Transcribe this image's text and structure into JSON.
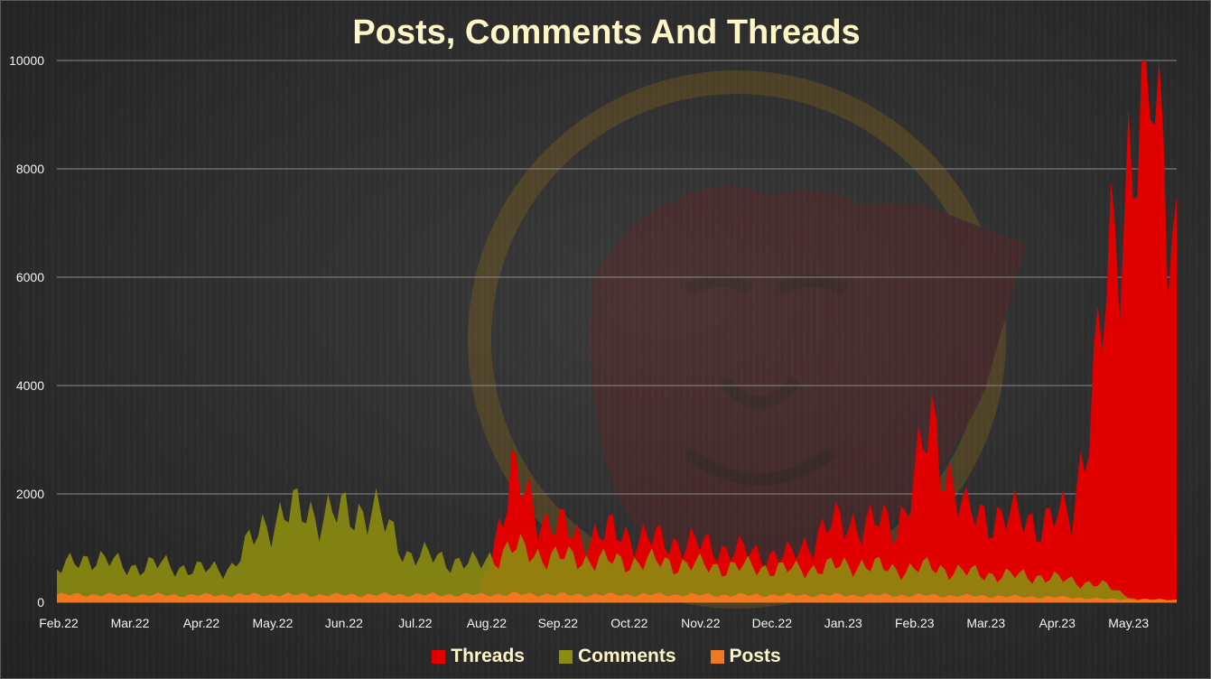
{
  "chart_data": {
    "type": "area",
    "title": "Posts, Comments And Threads",
    "xlabel": "",
    "ylabel": "",
    "ylim": [
      0,
      10000
    ],
    "yticks": [
      "0",
      "2000",
      "4000",
      "6000",
      "8000",
      "10000"
    ],
    "grid": true,
    "legend_position": "bottom",
    "categories": [
      "Feb.22",
      "Mar.22",
      "Apr.22",
      "May.22",
      "Jun.22",
      "Jul.22",
      "Aug.22",
      "Sep.22",
      "Oct.22",
      "Nov.22",
      "Dec.22",
      "Jan.23",
      "Feb.23",
      "Mar.23",
      "Apr.23",
      "May.23"
    ],
    "x": [
      "Feb.22",
      "Feb.22",
      "Mar.22",
      "Mar.22",
      "Apr.22",
      "Apr.22",
      "May.22",
      "May.22",
      "Jun.22",
      "Jun.22",
      "Jul.22",
      "Jul.22",
      "Aug.22",
      "Aug.22",
      "Sep.22",
      "Sep.22",
      "Oct.22",
      "Oct.22",
      "Nov.22",
      "Nov.22",
      "Dec.22",
      "Dec.22",
      "Jan.23",
      "Jan.23",
      "Feb.23",
      "Feb.23",
      "Mar.23",
      "Mar.23",
      "Apr.23",
      "Apr.23",
      "May.23",
      "May.23",
      "Jun.23"
    ],
    "series": [
      {
        "name": "Threads",
        "color": "#e00000",
        "values": [
          0,
          0,
          0,
          0,
          0,
          0,
          0,
          0,
          0,
          0,
          0,
          0,
          0,
          2300,
          1500,
          1200,
          1300,
          1150,
          1100,
          1000,
          900,
          850,
          1400,
          1500,
          1400,
          3200,
          1600,
          1600,
          1500,
          1600,
          5500,
          10000,
          7500
        ]
      },
      {
        "name": "Comments",
        "color": "#8c8c10",
        "values": [
          600,
          850,
          650,
          700,
          600,
          650,
          1500,
          1700,
          1600,
          1750,
          900,
          800,
          700,
          1000,
          850,
          800,
          750,
          750,
          700,
          650,
          650,
          600,
          650,
          700,
          600,
          650,
          550,
          500,
          480,
          400,
          300,
          0,
          0
        ]
      },
      {
        "name": "Posts",
        "color": "#f07820",
        "values": [
          140,
          140,
          130,
          135,
          130,
          135,
          140,
          140,
          135,
          140,
          140,
          140,
          140,
          150,
          145,
          140,
          140,
          140,
          140,
          135,
          135,
          130,
          135,
          130,
          130,
          125,
          120,
          110,
          100,
          90,
          60,
          50,
          50
        ]
      }
    ]
  },
  "colors": {
    "title": "#fff6c8",
    "grid": "#8a8a8a",
    "background": "#2d2d2d"
  }
}
